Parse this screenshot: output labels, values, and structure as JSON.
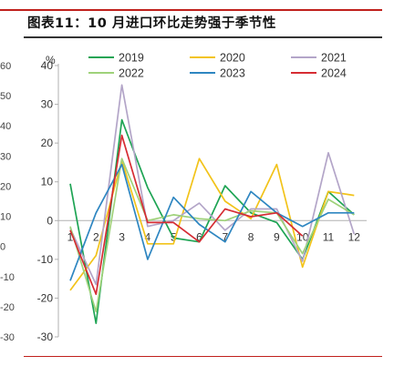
{
  "header": {
    "title": "图表11：10 月进口环比走势强于季节性"
  },
  "left_axis_fragment": [
    "60",
    "50",
    "40",
    "30",
    "20",
    "10",
    "0",
    "-10",
    "-20",
    "-30"
  ],
  "colors": {
    "accent_rule": "#c0201c",
    "axis": "#b0b0b0"
  },
  "chart_data": {
    "type": "line",
    "title": "",
    "xlabel": "",
    "ylabel": "",
    "y_unit": "%",
    "categories": [
      "1",
      "2",
      "3",
      "4",
      "5",
      "6",
      "7",
      "8",
      "9",
      "10",
      "11",
      "12"
    ],
    "ylim": [
      -30,
      40
    ],
    "yticks": [
      -30,
      -20,
      -10,
      0,
      10,
      20,
      30,
      40
    ],
    "ytick_labels": [
      "-30",
      "-20",
      "-10",
      "0",
      "10",
      "20",
      "30",
      "40"
    ],
    "grid": false,
    "legend_position": "top",
    "series": [
      {
        "name": "2019",
        "color": "#1ea454",
        "values": [
          9.5,
          -26.5,
          26,
          8.5,
          -4.5,
          -5.5,
          9,
          2,
          -0.5,
          -10,
          7.5,
          1.5
        ]
      },
      {
        "name": "2020",
        "color": "#f2c31a",
        "values": [
          -18,
          -9,
          15.5,
          -6,
          -6,
          16,
          5,
          0.5,
          14.5,
          -12,
          7.5,
          6.5
        ]
      },
      {
        "name": "2021",
        "color": "#b3a5c8",
        "values": [
          -2,
          -16.5,
          35,
          -1.5,
          0,
          4.5,
          -2.5,
          3,
          3,
          -10.5,
          17.5,
          -3.5
        ]
      },
      {
        "name": "2022",
        "color": "#9fd27a",
        "values": [
          -1.5,
          -23.5,
          16,
          0,
          1.5,
          0.5,
          0,
          2.5,
          2,
          -8.5,
          5.5,
          1.5
        ]
      },
      {
        "name": "2023",
        "color": "#2e86c1",
        "values": [
          -15.5,
          2,
          14.5,
          -10,
          6,
          -1,
          -5.5,
          7.5,
          2,
          -1.5,
          2,
          2
        ]
      },
      {
        "name": "2024",
        "color": "#d62c33",
        "values": [
          -2.5,
          -19,
          22,
          -0.5,
          -0.5,
          -5.5,
          3,
          1,
          2,
          -4,
          null,
          null
        ]
      }
    ]
  }
}
